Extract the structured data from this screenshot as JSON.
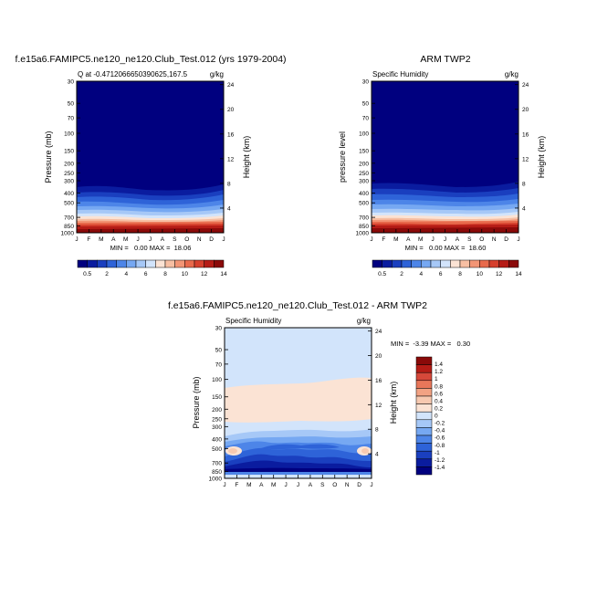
{
  "chart_data": [
    {
      "type": "heatmap",
      "title": "f.e15a6.FAMIPC5.ne120_ne120.Club_Test.012 (yrs 1979-2004)",
      "left_label": "Q at -0.4712066650390625,167.5",
      "right_label": "g/kg",
      "ylabel": "Pressure (mb)",
      "ylabel_right": "Height (km)",
      "x_ticks": [
        "J",
        "F",
        "M",
        "A",
        "M",
        "J",
        "J",
        "A",
        "S",
        "O",
        "N",
        "D",
        "J"
      ],
      "y_ticks": [
        "30",
        "50",
        "70",
        "100",
        "150",
        "200",
        "250",
        "300",
        "400",
        "500",
        "700",
        "850",
        "1000"
      ],
      "y_ticks_right": [
        "24",
        "20",
        "16",
        "12",
        "8",
        "4"
      ],
      "ylim": [
        30,
        1000
      ],
      "y_scale": "log",
      "min_max_text": "MIN =   0.00 MAX =  18.06",
      "min": 0.0,
      "max": 18.06,
      "colorbar_levels": [
        "0.5",
        "2",
        "4",
        "6",
        "8",
        "10",
        "12",
        "14"
      ],
      "colorbar_orientation": "horizontal"
    },
    {
      "type": "heatmap",
      "title": "ARM TWP2",
      "left_label": "Specific Humidity",
      "right_label": "g/kg",
      "ylabel": "pressure level",
      "ylabel_right": "Height (km)",
      "x_ticks": [
        "J",
        "F",
        "M",
        "A",
        "M",
        "J",
        "J",
        "A",
        "S",
        "O",
        "N",
        "D",
        "J"
      ],
      "y_ticks": [
        "30",
        "50",
        "70",
        "100",
        "150",
        "200",
        "250",
        "300",
        "400",
        "500",
        "700",
        "850",
        "1000"
      ],
      "y_ticks_right": [
        "24",
        "20",
        "16",
        "12",
        "8",
        "4"
      ],
      "ylim": [
        30,
        1000
      ],
      "y_scale": "log",
      "min_max_text": "MIN =   0.00 MAX =  18.60",
      "min": 0.0,
      "max": 18.6,
      "colorbar_levels": [
        "0.5",
        "2",
        "4",
        "6",
        "8",
        "10",
        "12",
        "14"
      ],
      "colorbar_orientation": "horizontal"
    },
    {
      "type": "heatmap",
      "title": "f.e15a6.FAMIPC5.ne120_ne120.Club_Test.012 - ARM TWP2",
      "left_label": "Specific Humidity",
      "right_label": "g/kg",
      "ylabel": "Pressure (mb)",
      "ylabel_right": "Height (km)",
      "x_ticks": [
        "J",
        "F",
        "M",
        "A",
        "M",
        "J",
        "J",
        "A",
        "S",
        "O",
        "N",
        "D",
        "J"
      ],
      "y_ticks": [
        "30",
        "50",
        "70",
        "100",
        "150",
        "200",
        "250",
        "300",
        "400",
        "500",
        "700",
        "850",
        "1000"
      ],
      "y_ticks_right": [
        "24",
        "20",
        "16",
        "12",
        "8",
        "4"
      ],
      "ylim": [
        30,
        1000
      ],
      "y_scale": "log",
      "min_max_text": "MIN =  -3.39 MAX =   0.30",
      "min": -3.39,
      "max": 0.3,
      "colorbar_levels": [
        "1.4",
        "1.2",
        "1",
        "0.8",
        "0.6",
        "0.4",
        "0.2",
        "0",
        "-0.2",
        "-0.4",
        "-0.6",
        "-0.8",
        "-1",
        "-1.2",
        "-1.4"
      ],
      "colorbar_orientation": "vertical"
    }
  ],
  "colors": {
    "seq_scale": [
      "#00007f",
      "#0a1c9f",
      "#1a3fbf",
      "#2e63d8",
      "#4d85e8",
      "#76a8f2",
      "#a6c8f7",
      "#d2e4fb",
      "#fbe3d4",
      "#f7bfa3",
      "#f29575",
      "#e86a4c",
      "#d6402d",
      "#b51c16",
      "#8a0a09"
    ],
    "diff_scale": [
      "#00007f",
      "#0a1c9f",
      "#1a3fbf",
      "#2e63d8",
      "#4d85e8",
      "#76a8f2",
      "#a6c8f7",
      "#d2e4fb",
      "#fbe3d4",
      "#f7c9b0",
      "#f2a283",
      "#e8775a",
      "#d6483a",
      "#b51c16",
      "#8a0a09"
    ]
  }
}
